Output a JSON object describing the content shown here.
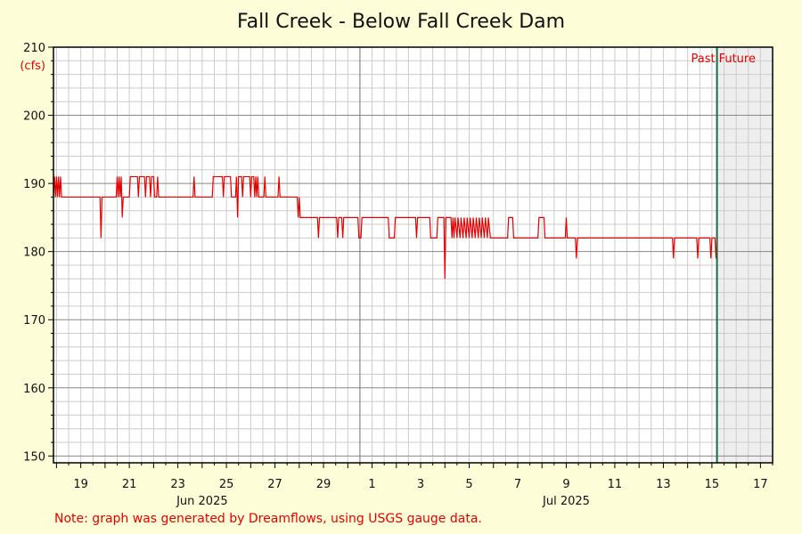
{
  "chart_data": {
    "type": "line",
    "title": "Fall Creek - Below Fall Creek Dam",
    "ylabel": "(cfs)",
    "ylim": [
      149,
      210
    ],
    "yticks": [
      150,
      160,
      170,
      180,
      190,
      200,
      210
    ],
    "xlim": [
      "2025-06-17T21:00",
      "2025-07-17T12:00"
    ],
    "x_day_ticks": [
      {
        "date": "2025-06-19",
        "label": "19"
      },
      {
        "date": "2025-06-21",
        "label": "21"
      },
      {
        "date": "2025-06-23",
        "label": "23"
      },
      {
        "date": "2025-06-25",
        "label": "25"
      },
      {
        "date": "2025-06-27",
        "label": "27"
      },
      {
        "date": "2025-06-29",
        "label": "29"
      },
      {
        "date": "2025-07-01",
        "label": "1"
      },
      {
        "date": "2025-07-03",
        "label": "3"
      },
      {
        "date": "2025-07-05",
        "label": "5"
      },
      {
        "date": "2025-07-07",
        "label": "7"
      },
      {
        "date": "2025-07-09",
        "label": "9"
      },
      {
        "date": "2025-07-11",
        "label": "11"
      },
      {
        "date": "2025-07-13",
        "label": "13"
      },
      {
        "date": "2025-07-15",
        "label": "15"
      },
      {
        "date": "2025-07-17",
        "label": "17"
      }
    ],
    "month_labels": [
      {
        "date": "2025-06-24",
        "label": "Jun 2025"
      },
      {
        "date": "2025-07-09",
        "label": "Jul 2025"
      }
    ],
    "month_boundary": "2025-06-30T12:00",
    "now": "2025-07-15T05:00",
    "past_label": "Past",
    "future_label": "Future",
    "grid": true,
    "series": [
      {
        "color": "#e60000",
        "points": [
          [
            "2025-06-17T21:00",
            188
          ],
          [
            "2025-06-17T22:00",
            191
          ],
          [
            "2025-06-17T23:00",
            188
          ],
          [
            "2025-06-18T00:00",
            191
          ],
          [
            "2025-06-18T01:00",
            188
          ],
          [
            "2025-06-18T02:00",
            191
          ],
          [
            "2025-06-18T03:00",
            188
          ],
          [
            "2025-06-18T04:00",
            191
          ],
          [
            "2025-06-18T05:00",
            188
          ],
          [
            "2025-06-19T19:00",
            188
          ],
          [
            "2025-06-19T20:00",
            182
          ],
          [
            "2025-06-19T21:00",
            188
          ],
          [
            "2025-06-20T11:00",
            188
          ],
          [
            "2025-06-20T12:00",
            191
          ],
          [
            "2025-06-20T13:00",
            188
          ],
          [
            "2025-06-20T14:00",
            191
          ],
          [
            "2025-06-20T15:00",
            188
          ],
          [
            "2025-06-20T16:00",
            191
          ],
          [
            "2025-06-20T17:00",
            185
          ],
          [
            "2025-06-20T18:00",
            188
          ],
          [
            "2025-06-21T00:00",
            188
          ],
          [
            "2025-06-21T01:00",
            191
          ],
          [
            "2025-06-21T08:00",
            191
          ],
          [
            "2025-06-21T09:00",
            188
          ],
          [
            "2025-06-21T10:00",
            191
          ],
          [
            "2025-06-21T15:00",
            191
          ],
          [
            "2025-06-21T16:00",
            188
          ],
          [
            "2025-06-21T17:00",
            191
          ],
          [
            "2025-06-21T20:00",
            191
          ],
          [
            "2025-06-21T21:00",
            188
          ],
          [
            "2025-06-21T22:00",
            191
          ],
          [
            "2025-06-22T00:00",
            191
          ],
          [
            "2025-06-22T01:00",
            188
          ],
          [
            "2025-06-22T03:00",
            188
          ],
          [
            "2025-06-22T04:00",
            191
          ],
          [
            "2025-06-22T05:00",
            188
          ],
          [
            "2025-06-23T15:00",
            188
          ],
          [
            "2025-06-23T16:00",
            191
          ],
          [
            "2025-06-23T17:00",
            188
          ],
          [
            "2025-06-24T10:00",
            188
          ],
          [
            "2025-06-24T11:00",
            191
          ],
          [
            "2025-06-24T20:00",
            191
          ],
          [
            "2025-06-24T21:00",
            188
          ],
          [
            "2025-06-24T22:00",
            191
          ],
          [
            "2025-06-25T04:00",
            191
          ],
          [
            "2025-06-25T05:00",
            188
          ],
          [
            "2025-06-25T09:00",
            188
          ],
          [
            "2025-06-25T10:00",
            191
          ],
          [
            "2025-06-25T11:00",
            185
          ],
          [
            "2025-06-25T12:00",
            191
          ],
          [
            "2025-06-25T15:00",
            191
          ],
          [
            "2025-06-25T16:00",
            188
          ],
          [
            "2025-06-25T17:00",
            191
          ],
          [
            "2025-06-25T23:00",
            191
          ],
          [
            "2025-06-26T00:00",
            188
          ],
          [
            "2025-06-26T01:00",
            191
          ],
          [
            "2025-06-26T03:00",
            191
          ],
          [
            "2025-06-26T04:00",
            188
          ],
          [
            "2025-06-26T05:00",
            191
          ],
          [
            "2025-06-26T06:00",
            188
          ],
          [
            "2025-06-26T07:00",
            191
          ],
          [
            "2025-06-26T08:00",
            188
          ],
          [
            "2025-06-26T13:00",
            188
          ],
          [
            "2025-06-26T14:00",
            191
          ],
          [
            "2025-06-26T15:00",
            188
          ],
          [
            "2025-06-27T03:00",
            188
          ],
          [
            "2025-06-27T04:00",
            191
          ],
          [
            "2025-06-27T05:00",
            188
          ],
          [
            "2025-06-27T22:00",
            188
          ],
          [
            "2025-06-27T23:00",
            185
          ],
          [
            "2025-06-28T00:00",
            188
          ],
          [
            "2025-06-28T01:00",
            185
          ],
          [
            "2025-06-28T18:00",
            185
          ],
          [
            "2025-06-28T19:00",
            182
          ],
          [
            "2025-06-28T20:00",
            185
          ],
          [
            "2025-06-29T13:00",
            185
          ],
          [
            "2025-06-29T14:00",
            182
          ],
          [
            "2025-06-29T15:00",
            185
          ],
          [
            "2025-06-29T18:00",
            185
          ],
          [
            "2025-06-29T19:00",
            182
          ],
          [
            "2025-06-29T20:00",
            185
          ],
          [
            "2025-06-30T10:00",
            185
          ],
          [
            "2025-06-30T11:00",
            182
          ],
          [
            "2025-06-30T13:00",
            182
          ],
          [
            "2025-06-30T14:00",
            185
          ],
          [
            "2025-07-01T16:00",
            185
          ],
          [
            "2025-07-01T17:00",
            182
          ],
          [
            "2025-07-01T22:00",
            182
          ],
          [
            "2025-07-01T23:00",
            185
          ],
          [
            "2025-07-02T19:00",
            185
          ],
          [
            "2025-07-02T20:00",
            182
          ],
          [
            "2025-07-02T21:00",
            185
          ],
          [
            "2025-07-03T09:00",
            185
          ],
          [
            "2025-07-03T10:00",
            182
          ],
          [
            "2025-07-03T16:00",
            182
          ],
          [
            "2025-07-03T17:00",
            185
          ],
          [
            "2025-07-03T23:00",
            185
          ],
          [
            "2025-07-04T00:00",
            176
          ],
          [
            "2025-07-04T01:00",
            185
          ],
          [
            "2025-07-04T06:00",
            185
          ],
          [
            "2025-07-04T07:00",
            182
          ],
          [
            "2025-07-04T08:00",
            185
          ],
          [
            "2025-07-04T09:00",
            182
          ],
          [
            "2025-07-04T10:00",
            185
          ],
          [
            "2025-07-04T12:00",
            182
          ],
          [
            "2025-07-04T13:00",
            185
          ],
          [
            "2025-07-04T15:00",
            182
          ],
          [
            "2025-07-04T16:00",
            185
          ],
          [
            "2025-07-04T18:00",
            182
          ],
          [
            "2025-07-04T19:00",
            185
          ],
          [
            "2025-07-04T21:00",
            182
          ],
          [
            "2025-07-04T22:00",
            185
          ],
          [
            "2025-07-05T00:00",
            182
          ],
          [
            "2025-07-05T01:00",
            185
          ],
          [
            "2025-07-05T03:00",
            182
          ],
          [
            "2025-07-05T04:00",
            185
          ],
          [
            "2025-07-05T06:00",
            182
          ],
          [
            "2025-07-05T07:00",
            185
          ],
          [
            "2025-07-05T09:00",
            182
          ],
          [
            "2025-07-05T10:00",
            185
          ],
          [
            "2025-07-05T12:00",
            182
          ],
          [
            "2025-07-05T13:00",
            185
          ],
          [
            "2025-07-05T15:00",
            182
          ],
          [
            "2025-07-05T16:00",
            185
          ],
          [
            "2025-07-05T18:00",
            182
          ],
          [
            "2025-07-05T19:00",
            185
          ],
          [
            "2025-07-05T21:00",
            182
          ],
          [
            "2025-07-06T14:00",
            182
          ],
          [
            "2025-07-06T15:00",
            185
          ],
          [
            "2025-07-06T19:00",
            185
          ],
          [
            "2025-07-06T20:00",
            182
          ],
          [
            "2025-07-07T20:00",
            182
          ],
          [
            "2025-07-07T21:00",
            185
          ],
          [
            "2025-07-08T02:00",
            185
          ],
          [
            "2025-07-08T03:00",
            182
          ],
          [
            "2025-07-08T23:00",
            182
          ],
          [
            "2025-07-09T00:00",
            185
          ],
          [
            "2025-07-09T01:00",
            182
          ],
          [
            "2025-07-09T09:00",
            182
          ],
          [
            "2025-07-09T10:00",
            179
          ],
          [
            "2025-07-09T11:00",
            182
          ],
          [
            "2025-07-13T09:00",
            182
          ],
          [
            "2025-07-13T10:00",
            179
          ],
          [
            "2025-07-13T11:00",
            182
          ],
          [
            "2025-07-14T09:00",
            182
          ],
          [
            "2025-07-14T10:00",
            179
          ],
          [
            "2025-07-14T11:00",
            182
          ],
          [
            "2025-07-14T22:00",
            182
          ],
          [
            "2025-07-14T23:00",
            179
          ],
          [
            "2025-07-15T00:00",
            182
          ],
          [
            "2025-07-15T03:00",
            182
          ],
          [
            "2025-07-15T04:00",
            179
          ],
          [
            "2025-07-15T05:00",
            182
          ]
        ]
      }
    ]
  },
  "note": "Note: graph was generated by Dreamflows, using USGS gauge data.",
  "colors": {
    "background": "#fdfdd7",
    "plot_background": "#ffffff",
    "future_background": "#eeeeee",
    "line": "#e60000",
    "now_line": "#1a6b45"
  }
}
